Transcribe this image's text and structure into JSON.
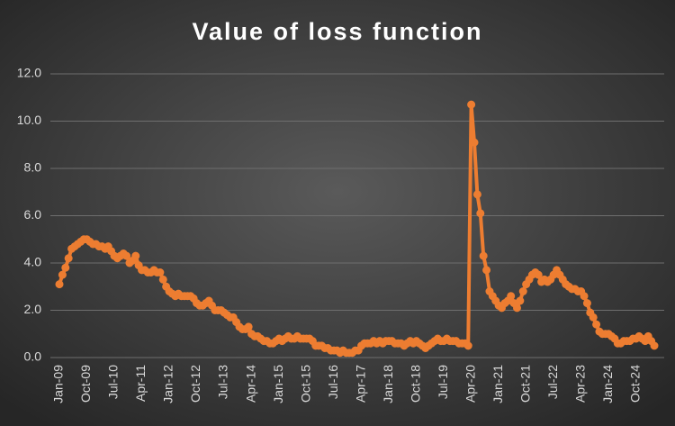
{
  "chart_data": {
    "type": "line",
    "title": "Value of loss function",
    "categories": [
      "Jan-09",
      null,
      null,
      null,
      null,
      null,
      null,
      null,
      null,
      "Oct-09",
      null,
      null,
      null,
      null,
      null,
      null,
      null,
      null,
      "Jul-10",
      null,
      null,
      null,
      null,
      null,
      null,
      null,
      null,
      "Apr-11",
      null,
      null,
      null,
      null,
      null,
      null,
      null,
      null,
      "Jan-12",
      null,
      null,
      null,
      null,
      null,
      null,
      null,
      null,
      "Oct-12",
      null,
      null,
      null,
      null,
      null,
      null,
      null,
      null,
      "Jul-13",
      null,
      null,
      null,
      null,
      null,
      null,
      null,
      null,
      "Apr-14",
      null,
      null,
      null,
      null,
      null,
      null,
      null,
      null,
      "Jan-15",
      null,
      null,
      null,
      null,
      null,
      null,
      null,
      null,
      "Oct-15",
      null,
      null,
      null,
      null,
      null,
      null,
      null,
      null,
      "Jul-16",
      null,
      null,
      null,
      null,
      null,
      null,
      null,
      null,
      "Apr-17",
      null,
      null,
      null,
      null,
      null,
      null,
      null,
      null,
      "Jan-18",
      null,
      null,
      null,
      null,
      null,
      null,
      null,
      null,
      "Oct-18",
      null,
      null,
      null,
      null,
      null,
      null,
      null,
      null,
      "Jul-19",
      null,
      null,
      null,
      null,
      null,
      null,
      null,
      null,
      "Apr-20",
      null,
      null,
      null,
      null,
      null,
      null,
      null,
      null,
      "Jan-21",
      null,
      null,
      null,
      null,
      null,
      null,
      null,
      null,
      "Oct-21",
      null,
      null,
      null,
      null,
      null,
      null,
      null,
      null,
      "Jul-22",
      null,
      null,
      null,
      null,
      null,
      null,
      null,
      null,
      "Apr-23",
      null,
      null,
      null,
      null,
      null,
      null,
      null,
      null,
      "Jan-24",
      null,
      null,
      null,
      null,
      null,
      null,
      null,
      null,
      "Oct-24",
      null,
      null,
      null,
      null,
      null,
      null
    ],
    "values": [
      3.1,
      3.5,
      3.8,
      4.2,
      4.6,
      4.7,
      4.8,
      4.9,
      5.0,
      5.0,
      4.9,
      4.8,
      4.8,
      4.7,
      4.7,
      4.6,
      4.7,
      4.5,
      4.3,
      4.2,
      4.3,
      4.4,
      4.3,
      4.0,
      4.1,
      4.3,
      3.9,
      3.7,
      3.7,
      3.6,
      3.6,
      3.7,
      3.6,
      3.6,
      3.3,
      3.0,
      2.8,
      2.7,
      2.6,
      2.7,
      2.6,
      2.6,
      2.6,
      2.6,
      2.5,
      2.3,
      2.2,
      2.2,
      2.3,
      2.4,
      2.2,
      2.0,
      2.0,
      2.0,
      1.9,
      1.8,
      1.7,
      1.7,
      1.5,
      1.3,
      1.2,
      1.2,
      1.3,
      1.0,
      0.9,
      0.9,
      0.8,
      0.7,
      0.7,
      0.6,
      0.6,
      0.7,
      0.8,
      0.7,
      0.8,
      0.9,
      0.8,
      0.8,
      0.9,
      0.8,
      0.8,
      0.8,
      0.8,
      0.7,
      0.5,
      0.5,
      0.5,
      0.4,
      0.4,
      0.3,
      0.3,
      0.3,
      0.2,
      0.3,
      0.2,
      0.2,
      0.2,
      0.3,
      0.3,
      0.5,
      0.6,
      0.6,
      0.6,
      0.7,
      0.6,
      0.7,
      0.6,
      0.7,
      0.7,
      0.7,
      0.6,
      0.6,
      0.6,
      0.5,
      0.6,
      0.7,
      0.6,
      0.7,
      0.6,
      0.5,
      0.4,
      0.5,
      0.6,
      0.7,
      0.8,
      0.7,
      0.7,
      0.8,
      0.7,
      0.7,
      0.7,
      0.6,
      0.6,
      0.6,
      0.5,
      10.7,
      9.1,
      6.9,
      6.1,
      4.3,
      3.7,
      2.8,
      2.6,
      2.4,
      2.2,
      2.1,
      2.3,
      2.4,
      2.6,
      2.3,
      2.1,
      2.4,
      2.8,
      3.1,
      3.3,
      3.5,
      3.6,
      3.5,
      3.2,
      3.3,
      3.2,
      3.3,
      3.5,
      3.7,
      3.5,
      3.3,
      3.1,
      3.0,
      2.9,
      2.9,
      2.8,
      2.8,
      2.6,
      2.3,
      1.9,
      1.7,
      1.4,
      1.1,
      1.0,
      1.0,
      1.0,
      0.9,
      0.8,
      0.6,
      0.6,
      0.7,
      0.7,
      0.7,
      0.8,
      0.8,
      0.9,
      0.8,
      0.7,
      0.9,
      0.7,
      0.5
    ],
    "color": "#ed7d31",
    "ylim": [
      0,
      12
    ],
    "yticks": [
      {
        "value": 0,
        "label": "0.0"
      },
      {
        "value": 2,
        "label": "2.0"
      },
      {
        "value": 4,
        "label": "4.0"
      },
      {
        "value": 6,
        "label": "6.0"
      },
      {
        "value": 8,
        "label": "8.0"
      },
      {
        "value": 10,
        "label": "10.0"
      },
      {
        "value": 12,
        "label": "12.0"
      }
    ],
    "grid": true
  }
}
